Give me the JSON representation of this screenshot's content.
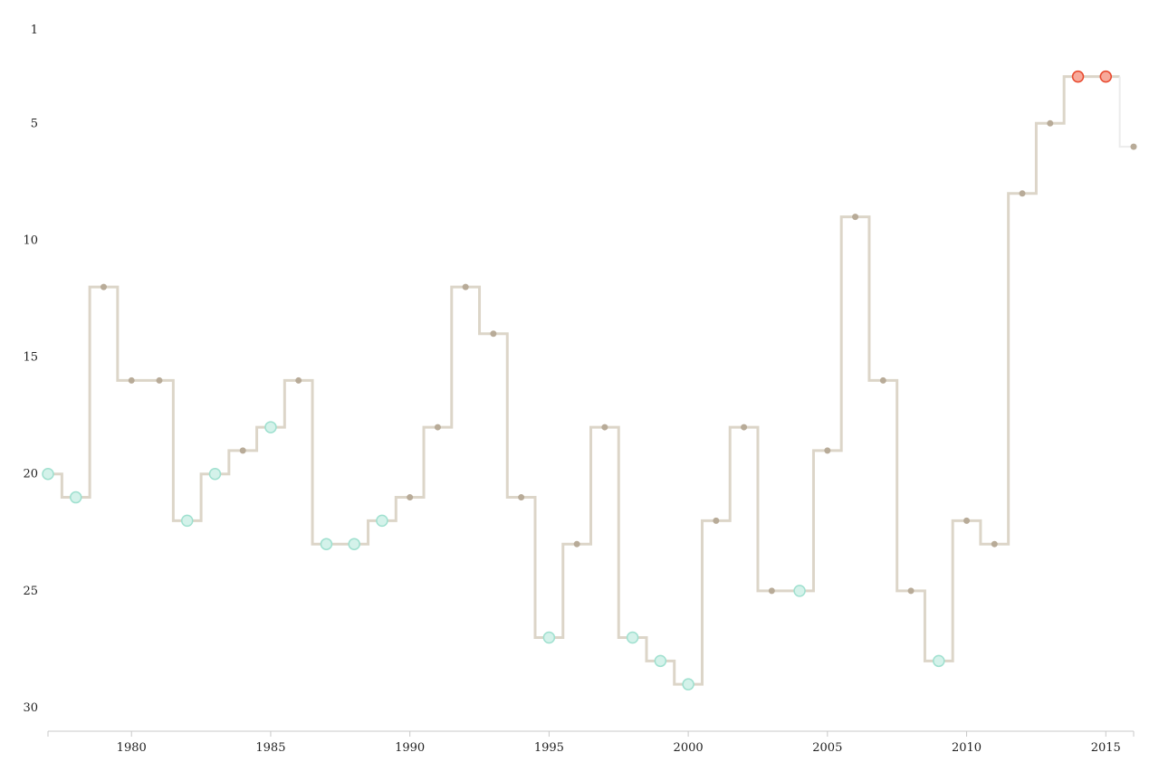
{
  "chart_data": {
    "type": "line",
    "step": true,
    "y_inverted": true,
    "title": "",
    "xlabel": "",
    "ylabel": "",
    "xlim": [
      1977,
      2016
    ],
    "ylim": [
      1,
      30
    ],
    "x_ticks": [
      1980,
      1985,
      1990,
      1995,
      2000,
      2005,
      2010,
      2015
    ],
    "y_ticks": [
      1,
      5,
      10,
      15,
      20,
      25,
      30
    ],
    "grid": false,
    "series": [
      {
        "x": [
          1977,
          1978,
          1979,
          1980,
          1981,
          1982,
          1983,
          1984,
          1985,
          1986,
          1987,
          1988,
          1989,
          1990,
          1991,
          1992,
          1993,
          1994,
          1995,
          1996,
          1997,
          1998,
          1999,
          2000,
          2001,
          2002,
          2003,
          2004,
          2005,
          2006,
          2007,
          2008,
          2009,
          2010,
          2011,
          2012,
          2013,
          2014,
          2015,
          2016
        ],
        "values": [
          20,
          21,
          12,
          16,
          16,
          22,
          20,
          19,
          18,
          16,
          23,
          23,
          22,
          21,
          18,
          12,
          14,
          21,
          27,
          23,
          18,
          27,
          28,
          29,
          22,
          18,
          25,
          25,
          19,
          9,
          16,
          25,
          28,
          22,
          23,
          8,
          5,
          3,
          3,
          6
        ],
        "marker": [
          "teal",
          "teal",
          "dot",
          "dot",
          "dot",
          "teal",
          "teal",
          "dot",
          "teal",
          "dot",
          "teal",
          "teal",
          "teal",
          "dot",
          "dot",
          "dot",
          "dot",
          "dot",
          "teal",
          "dot",
          "dot",
          "teal",
          "teal",
          "teal",
          "dot",
          "dot",
          "dot",
          "teal",
          "dot",
          "dot",
          "dot",
          "dot",
          "teal",
          "dot",
          "dot",
          "dot",
          "dot",
          "red",
          "red",
          "dot"
        ]
      }
    ],
    "colors": {
      "line": "#dcd5c8",
      "line_last": "#ececec",
      "dot": "#b8ab98",
      "teal_fill": "#d4f2ea",
      "teal_stroke": "#9fe0cf",
      "red_fill": "#f7a99a",
      "red_stroke": "#e8492e",
      "axis": "#c8c8c8"
    }
  }
}
